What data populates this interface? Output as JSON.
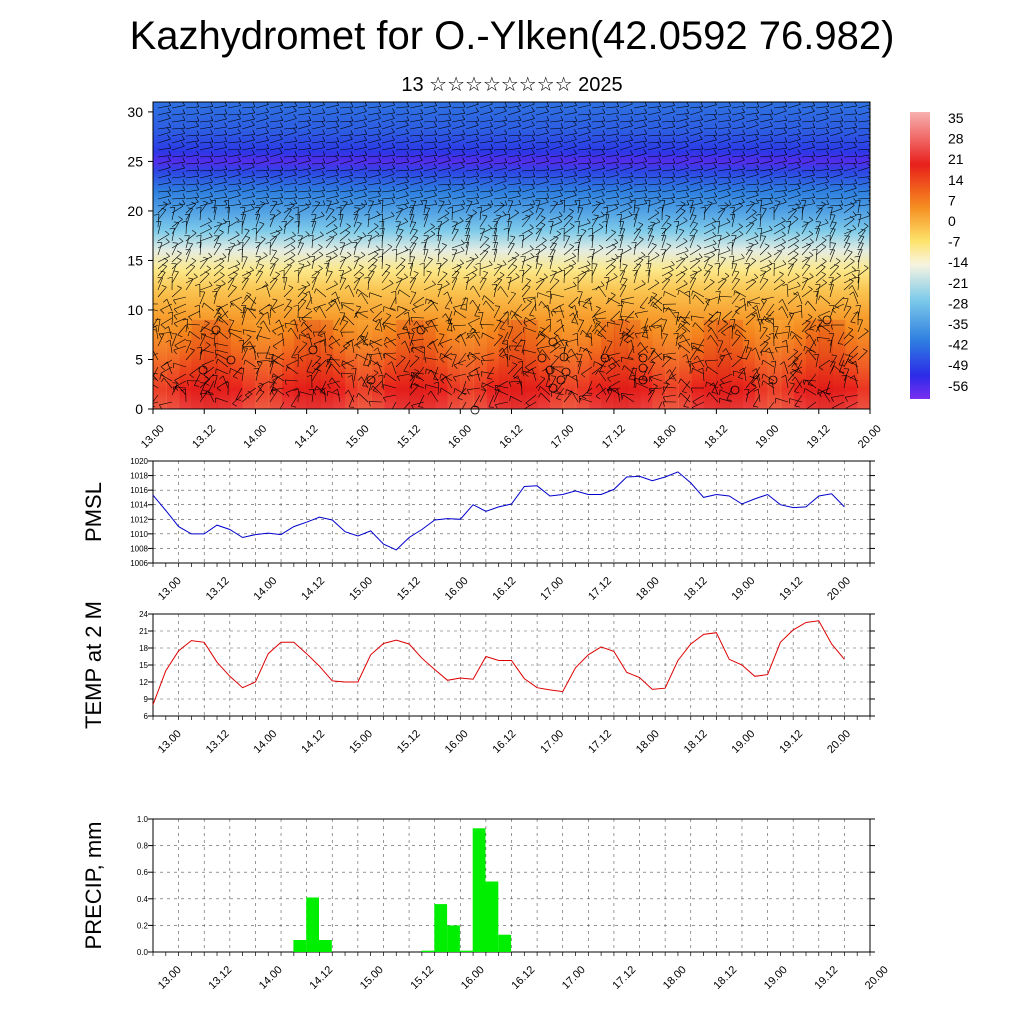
{
  "header": {
    "title": "Kazhydromet for O.-Ylken(42.0592 76.982)",
    "subtitle": "13 ☆☆☆☆☆☆☆☆ 2025"
  },
  "time_ticks": [
    "13.00",
    "13.12",
    "14.00",
    "14.12",
    "15.00",
    "15.12",
    "16.00",
    "16.12",
    "17.00",
    "17.12",
    "18.00",
    "18.12",
    "19.00",
    "19.12",
    "20.00"
  ],
  "chart_data": [
    {
      "type": "heatmap",
      "name": "temperature-wind-cross-section",
      "x": {
        "ticks": [
          "13.00",
          "13.12",
          "14.00",
          "14.12",
          "15.00",
          "15.12",
          "16.00",
          "16.12",
          "17.00",
          "17.12",
          "18.00",
          "18.12",
          "19.00",
          "19.12",
          "20.00"
        ]
      },
      "y": {
        "ticks": [
          0,
          5,
          10,
          15,
          20,
          25,
          30
        ],
        "range": [
          0,
          31
        ]
      },
      "colorbar": {
        "labels": [
          "35",
          "28",
          "21",
          "14",
          "7",
          "0",
          "-7",
          "-14",
          "-21",
          "-28",
          "-35",
          "-42",
          "-49",
          "-56"
        ],
        "range": [
          -60,
          38
        ],
        "colors": {
          "hot": "#e8201c",
          "warm": "#f58a1e",
          "mild": "#fde36a",
          "neutral": "#f8f4e0",
          "cool": "#7ecbea",
          "cold": "#2e7fe0",
          "deep": "#2c2ae8",
          "top": "#7a2ff0"
        }
      },
      "rows_height_km": [
        0,
        2,
        4,
        6,
        8,
        10,
        12,
        14,
        16,
        18,
        20,
        22,
        24,
        25,
        26,
        28,
        31
      ],
      "rows_temperature": [
        24,
        20,
        15,
        10,
        6,
        2,
        -2,
        -8,
        -16,
        -26,
        -34,
        -40,
        -48,
        -56,
        -50,
        -45,
        -42
      ]
    },
    {
      "type": "line",
      "name": "pmsl",
      "ylabel": "PMSL",
      "ylim": [
        1006,
        1020
      ],
      "yticks": [
        1006,
        1008,
        1010,
        1012,
        1014,
        1016,
        1018,
        1020
      ],
      "xlim": [
        0,
        168
      ],
      "color": "#0000cc",
      "series": [
        {
          "x": [
            0,
            3,
            6,
            9,
            12,
            15,
            18,
            21,
            24,
            27,
            30,
            33,
            36,
            39,
            42,
            45,
            48,
            51,
            54,
            57,
            60,
            63,
            66,
            69,
            72,
            75,
            78,
            81,
            84,
            87,
            90,
            93,
            96,
            99,
            102,
            105,
            108,
            111,
            114,
            117,
            120,
            123,
            126,
            129,
            132,
            135,
            138,
            141,
            144,
            147,
            150,
            153,
            156,
            159,
            162
          ],
          "values": [
            1015.3,
            1013.2,
            1011.0,
            1010.0,
            1010.0,
            1011.2,
            1010.6,
            1009.5,
            1009.9,
            1010.1,
            1009.9,
            1011.0,
            1011.6,
            1012.3,
            1011.9,
            1010.3,
            1009.7,
            1010.4,
            1008.6,
            1007.8,
            1009.5,
            1010.6,
            1011.9,
            1012.1,
            1012.0,
            1014.0,
            1013.1,
            1013.7,
            1014.1,
            1016.5,
            1016.6,
            1015.2,
            1015.4,
            1015.9,
            1015.4,
            1015.4,
            1016.1,
            1017.8,
            1017.9,
            1017.3,
            1017.8,
            1018.5,
            1017.0,
            1015.0,
            1015.4,
            1015.2,
            1014.1,
            1014.8,
            1015.4,
            1014.0,
            1013.6,
            1013.7,
            1015.2,
            1015.5,
            1013.7
          ]
        }
      ]
    },
    {
      "type": "line",
      "name": "temp-2m",
      "ylabel": "TEMP at 2 M",
      "ylim": [
        6,
        24
      ],
      "yticks": [
        6,
        9,
        12,
        15,
        18,
        21,
        24
      ],
      "xlim": [
        0,
        168
      ],
      "color": "#dd0000",
      "series": [
        {
          "x": [
            0,
            3,
            6,
            9,
            12,
            15,
            18,
            21,
            24,
            27,
            30,
            33,
            36,
            39,
            42,
            45,
            48,
            51,
            54,
            57,
            60,
            63,
            66,
            69,
            72,
            75,
            78,
            81,
            84,
            87,
            90,
            93,
            96,
            99,
            102,
            105,
            108,
            111,
            114,
            117,
            120,
            123,
            126,
            129,
            132,
            135,
            138,
            141,
            144,
            147,
            150,
            153,
            156,
            159,
            162
          ],
          "values": [
            8.0,
            14.0,
            17.5,
            19.3,
            19.0,
            15.5,
            13.0,
            11.0,
            12.0,
            17.0,
            19.0,
            19.0,
            17.0,
            14.8,
            12.2,
            12.0,
            12.0,
            16.8,
            18.8,
            19.4,
            18.7,
            16.2,
            14.2,
            12.3,
            12.7,
            12.5,
            16.5,
            15.8,
            15.8,
            12.6,
            11.0,
            10.6,
            10.3,
            14.5,
            16.8,
            18.2,
            17.4,
            13.7,
            12.8,
            10.7,
            10.9,
            15.8,
            18.7,
            20.4,
            20.7,
            16.0,
            15.0,
            13.0,
            13.3,
            19.0,
            21.2,
            22.5,
            22.8,
            18.7,
            16.0
          ]
        }
      ]
    },
    {
      "type": "bar",
      "name": "precip",
      "ylabel": "PRECIP, mm",
      "ylim": [
        0,
        1.0
      ],
      "yticks": [
        "0.0",
        "0.2",
        "0.4",
        "0.6",
        "0.8",
        "1.0"
      ],
      "xlim": [
        0,
        168
      ],
      "color": "#00ee00",
      "bars": [
        {
          "x": 33,
          "value": 0.09
        },
        {
          "x": 36,
          "value": 0.41
        },
        {
          "x": 39,
          "value": 0.09
        },
        {
          "x": 63,
          "value": 0.01
        },
        {
          "x": 66,
          "value": 0.36
        },
        {
          "x": 69,
          "value": 0.2
        },
        {
          "x": 72,
          "value": 0.01
        },
        {
          "x": 75,
          "value": 0.93
        },
        {
          "x": 78,
          "value": 0.53
        },
        {
          "x": 81,
          "value": 0.13
        }
      ]
    }
  ]
}
